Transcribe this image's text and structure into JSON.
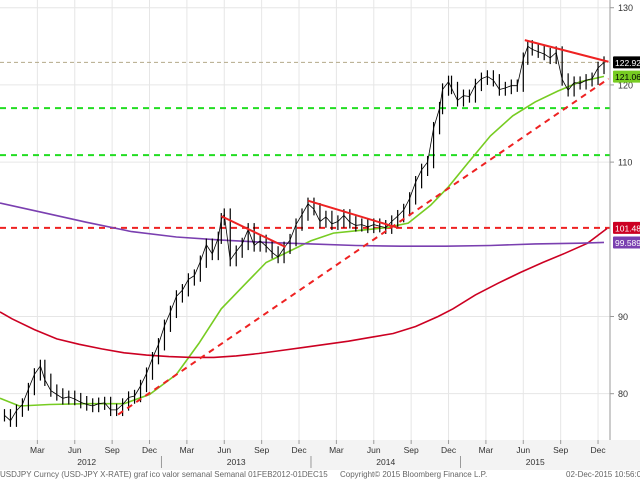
{
  "chart_data": {
    "type": "line",
    "title": "",
    "y_ticks": [
      80,
      90,
      110,
      120,
      130
    ],
    "ylim": [
      74,
      131
    ],
    "x_month_ticks": [
      {
        "label": "Mar",
        "t": 2012.17
      },
      {
        "label": "Jun",
        "t": 2012.42
      },
      {
        "label": "Sep",
        "t": 2012.67
      },
      {
        "label": "Dec",
        "t": 2012.92
      },
      {
        "label": "Mar",
        "t": 2013.17
      },
      {
        "label": "Jun",
        "t": 2013.42
      },
      {
        "label": "Sep",
        "t": 2013.67
      },
      {
        "label": "Dec",
        "t": 2013.92
      },
      {
        "label": "Mar",
        "t": 2014.17
      },
      {
        "label": "Jun",
        "t": 2014.42
      },
      {
        "label": "Sep",
        "t": 2014.67
      },
      {
        "label": "Dec",
        "t": 2014.92
      },
      {
        "label": "Mar",
        "t": 2015.17
      },
      {
        "label": "Jun",
        "t": 2015.42
      },
      {
        "label": "Sep",
        "t": 2015.67
      },
      {
        "label": "Dec",
        "t": 2015.92
      }
    ],
    "x_year_labels": [
      {
        "label": "2012",
        "t": 2012.5
      },
      {
        "label": "2013",
        "t": 2013.5
      },
      {
        "label": "2014",
        "t": 2014.5
      },
      {
        "label": "2015",
        "t": 2015.5
      }
    ],
    "xlim": [
      2011.92,
      2016.0
    ],
    "price": {
      "color": "#000000",
      "points": [
        [
          2011.95,
          77.2
        ],
        [
          2011.99,
          76.5
        ],
        [
          2012.03,
          77.8
        ],
        [
          2012.07,
          78.6
        ],
        [
          2012.11,
          80.6
        ],
        [
          2012.15,
          82.5
        ],
        [
          2012.19,
          83.6
        ],
        [
          2012.22,
          81.8
        ],
        [
          2012.26,
          80.4
        ],
        [
          2012.3,
          79.9
        ],
        [
          2012.34,
          79.4
        ],
        [
          2012.38,
          79.6
        ],
        [
          2012.42,
          79.3
        ],
        [
          2012.46,
          78.9
        ],
        [
          2012.5,
          78.6
        ],
        [
          2012.54,
          78.4
        ],
        [
          2012.58,
          78.7
        ],
        [
          2012.62,
          78.8
        ],
        [
          2012.66,
          77.9
        ],
        [
          2012.7,
          77.9
        ],
        [
          2012.74,
          78.6
        ],
        [
          2012.78,
          79.5
        ],
        [
          2012.82,
          79.7
        ],
        [
          2012.86,
          81.0
        ],
        [
          2012.9,
          82.6
        ],
        [
          2012.94,
          84.6
        ],
        [
          2012.98,
          86.4
        ],
        [
          2013.02,
          88.8
        ],
        [
          2013.06,
          90.6
        ],
        [
          2013.1,
          92.6
        ],
        [
          2013.14,
          93.4
        ],
        [
          2013.18,
          94.8
        ],
        [
          2013.22,
          95.3
        ],
        [
          2013.26,
          97.1
        ],
        [
          2013.3,
          99.3
        ],
        [
          2013.34,
          98.1
        ],
        [
          2013.38,
          100.2
        ],
        [
          2013.4,
          102.6
        ],
        [
          2013.42,
          103.2
        ],
        [
          2013.46,
          97.3
        ],
        [
          2013.5,
          98.4
        ],
        [
          2013.54,
          99.4
        ],
        [
          2013.58,
          101.3
        ],
        [
          2013.62,
          99.2
        ],
        [
          2013.66,
          99.8
        ],
        [
          2013.7,
          99.1
        ],
        [
          2013.74,
          98.3
        ],
        [
          2013.78,
          97.7
        ],
        [
          2013.82,
          98.9
        ],
        [
          2013.86,
          99.9
        ],
        [
          2013.9,
          101.9
        ],
        [
          2013.94,
          103.2
        ],
        [
          2013.98,
          104.6
        ],
        [
          2014.02,
          103.9
        ],
        [
          2014.06,
          102.3
        ],
        [
          2014.1,
          102.9
        ],
        [
          2014.14,
          102.0
        ],
        [
          2014.18,
          102.3
        ],
        [
          2014.22,
          103.1
        ],
        [
          2014.26,
          102.2
        ],
        [
          2014.3,
          101.8
        ],
        [
          2014.34,
          101.9
        ],
        [
          2014.38,
          101.6
        ],
        [
          2014.42,
          101.9
        ],
        [
          2014.46,
          101.7
        ],
        [
          2014.5,
          101.5
        ],
        [
          2014.54,
          102.3
        ],
        [
          2014.58,
          103.0
        ],
        [
          2014.62,
          103.8
        ],
        [
          2014.66,
          105.3
        ],
        [
          2014.7,
          107.4
        ],
        [
          2014.74,
          109.0
        ],
        [
          2014.78,
          110.0
        ],
        [
          2014.82,
          114.4
        ],
        [
          2014.86,
          117.0
        ],
        [
          2014.88,
          119.4
        ],
        [
          2014.92,
          120.4
        ],
        [
          2014.94,
          119.6
        ],
        [
          2014.98,
          118.0
        ],
        [
          2015.02,
          118.6
        ],
        [
          2015.06,
          118.5
        ],
        [
          2015.1,
          120.0
        ],
        [
          2015.14,
          120.8
        ],
        [
          2015.18,
          121.1
        ],
        [
          2015.22,
          120.6
        ],
        [
          2015.26,
          119.4
        ],
        [
          2015.3,
          119.6
        ],
        [
          2015.34,
          119.9
        ],
        [
          2015.38,
          119.9
        ],
        [
          2015.42,
          123.4
        ],
        [
          2015.45,
          125.0
        ],
        [
          2015.48,
          124.6
        ],
        [
          2015.52,
          124.3
        ],
        [
          2015.56,
          124.0
        ],
        [
          2015.6,
          123.5
        ],
        [
          2015.64,
          124.2
        ],
        [
          2015.68,
          120.7
        ],
        [
          2015.72,
          119.3
        ],
        [
          2015.76,
          120.3
        ],
        [
          2015.8,
          120.2
        ],
        [
          2015.84,
          120.6
        ],
        [
          2015.88,
          120.8
        ],
        [
          2015.92,
          122.2
        ],
        [
          2015.96,
          122.9
        ]
      ]
    },
    "series": [
      {
        "color": "#77cc22",
        "points": [
          [
            2011.92,
            79.4
          ],
          [
            2012.05,
            78.4
          ],
          [
            2012.25,
            78.6
          ],
          [
            2012.5,
            78.7
          ],
          [
            2012.75,
            78.7
          ],
          [
            2012.92,
            79.9
          ],
          [
            2013.1,
            82.5
          ],
          [
            2013.25,
            86.5
          ],
          [
            2013.4,
            91.0
          ],
          [
            2013.55,
            94.0
          ],
          [
            2013.7,
            97.0
          ],
          [
            2013.85,
            98.4
          ],
          [
            2014.0,
            99.8
          ],
          [
            2014.15,
            100.8
          ],
          [
            2014.3,
            101.1
          ],
          [
            2014.5,
            101.5
          ],
          [
            2014.65,
            102.1
          ],
          [
            2014.8,
            104.4
          ],
          [
            2014.92,
            106.8
          ],
          [
            2015.05,
            109.9
          ],
          [
            2015.2,
            113.4
          ],
          [
            2015.35,
            116.0
          ],
          [
            2015.5,
            117.8
          ],
          [
            2015.65,
            119.2
          ],
          [
            2015.8,
            120.4
          ],
          [
            2015.96,
            121.1
          ]
        ]
      },
      {
        "color": "#cc0022",
        "points": [
          [
            2011.92,
            90.6
          ],
          [
            2012.0,
            89.7
          ],
          [
            2012.15,
            88.3
          ],
          [
            2012.3,
            87.1
          ],
          [
            2012.45,
            86.4
          ],
          [
            2012.6,
            85.8
          ],
          [
            2012.75,
            85.3
          ],
          [
            2012.9,
            85.0
          ],
          [
            2013.05,
            84.8
          ],
          [
            2013.2,
            84.7
          ],
          [
            2013.35,
            84.7
          ],
          [
            2013.5,
            84.9
          ],
          [
            2013.65,
            85.2
          ],
          [
            2013.8,
            85.6
          ],
          [
            2013.95,
            86.0
          ],
          [
            2014.1,
            86.4
          ],
          [
            2014.25,
            86.8
          ],
          [
            2014.4,
            87.3
          ],
          [
            2014.55,
            87.8
          ],
          [
            2014.7,
            88.7
          ],
          [
            2014.85,
            90.0
          ],
          [
            2014.95,
            91.0
          ],
          [
            2015.1,
            92.8
          ],
          [
            2015.25,
            94.3
          ],
          [
            2015.4,
            95.7
          ],
          [
            2015.55,
            97.0
          ],
          [
            2015.7,
            98.2
          ],
          [
            2015.85,
            99.5
          ],
          [
            2015.98,
            101.4
          ]
        ]
      },
      {
        "color": "#7a3fb0",
        "points": [
          [
            2011.92,
            104.7
          ],
          [
            2012.2,
            103.5
          ],
          [
            2012.5,
            102.2
          ],
          [
            2012.8,
            101.0
          ],
          [
            2013.1,
            100.3
          ],
          [
            2013.4,
            99.9
          ],
          [
            2013.7,
            99.6
          ],
          [
            2014.0,
            99.4
          ],
          [
            2014.3,
            99.2
          ],
          [
            2014.6,
            99.1
          ],
          [
            2014.9,
            99.1
          ],
          [
            2015.2,
            99.2
          ],
          [
            2015.5,
            99.4
          ],
          [
            2015.8,
            99.5
          ],
          [
            2015.96,
            99.6
          ]
        ]
      }
    ],
    "horizontal_lines": [
      {
        "y": 122.92,
        "color": "#b4a98a",
        "style": "dash"
      },
      {
        "y": 117.0,
        "color": "#22dd22",
        "style": "dash"
      },
      {
        "y": 110.9,
        "color": "#22dd22",
        "style": "dash"
      },
      {
        "y": 101.482,
        "color": "#ee2222",
        "style": "dash"
      }
    ],
    "trendlines": [
      {
        "from": [
          2012.71,
          77.3
        ],
        "to": [
          2015.99,
          120.8
        ],
        "color": "#ee2222",
        "style": "dash"
      },
      {
        "from": [
          2013.4,
          103.0
        ],
        "to": [
          2013.83,
          99.0
        ],
        "color": "#ee2222",
        "style": "solid"
      },
      {
        "from": [
          2013.98,
          105.0
        ],
        "to": [
          2014.58,
          101.5
        ],
        "color": "#ee2222",
        "style": "solid"
      },
      {
        "from": [
          2015.43,
          125.8
        ],
        "to": [
          2015.99,
          123.0
        ],
        "color": "#ee2222",
        "style": "solid"
      }
    ],
    "last_value_labels": [
      {
        "text": "122.92",
        "y": 122.92,
        "bg": "#000000",
        "fg": "#ffffff"
      },
      {
        "text": "121.066",
        "y": 121.066,
        "bg": "#77cc22",
        "fg": "#000000"
      },
      {
        "text": "101.482",
        "y": 101.482,
        "bg": "#cc0022",
        "fg": "#ffffff"
      },
      {
        "text": "99.589",
        "y": 99.589,
        "bg": "#7a3fb0",
        "fg": "#ffffff"
      }
    ]
  },
  "footer": {
    "left": "USDJPY Curncy (USD-JPY X-RATE) graf ico valor semanal Semanal 01FEB2012-01DEC15",
    "center": "Copyright© 2015 Bloomberg Finance L.P.",
    "right": "02-Dec-2015 10:56:00"
  }
}
